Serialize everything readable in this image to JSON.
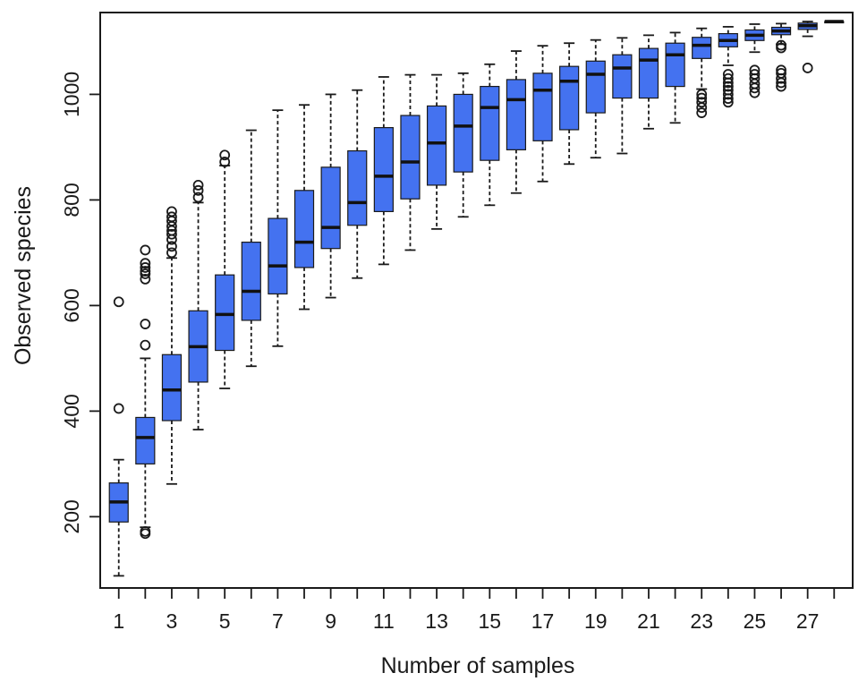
{
  "chart_data": {
    "type": "box",
    "xlabel": "Number of samples",
    "ylabel": "Observed species",
    "xlim": [
      0.3,
      28.7
    ],
    "ylim": [
      65,
      1155
    ],
    "x_ticks": [
      1,
      3,
      5,
      7,
      9,
      11,
      13,
      15,
      17,
      19,
      21,
      23,
      25,
      27
    ],
    "y_ticks": [
      200,
      400,
      600,
      800,
      1000
    ],
    "grid": false,
    "box_color": "#4472f0",
    "boxes": [
      {
        "x": 1,
        "whisker_low": 88,
        "q1": 190,
        "median": 228,
        "q3": 264,
        "whisker_high": 308,
        "outliers": [
          405,
          607
        ]
      },
      {
        "x": 2,
        "whisker_low": 180,
        "q1": 300,
        "median": 350,
        "q3": 388,
        "whisker_high": 500,
        "outliers": [
          168,
          172,
          525,
          565,
          650,
          660,
          665,
          672,
          680,
          705
        ]
      },
      {
        "x": 3,
        "whisker_low": 262,
        "q1": 382,
        "median": 440,
        "q3": 507,
        "whisker_high": 690,
        "outliers": [
          700,
          712,
          725,
          735,
          742,
          750,
          760,
          768,
          778
        ]
      },
      {
        "x": 4,
        "whisker_low": 365,
        "q1": 455,
        "median": 522,
        "q3": 590,
        "whisker_high": 795,
        "outliers": [
          805,
          818,
          828
        ]
      },
      {
        "x": 5,
        "whisker_low": 443,
        "q1": 515,
        "median": 583,
        "q3": 658,
        "whisker_high": 865,
        "outliers": [
          872,
          885
        ]
      },
      {
        "x": 6,
        "whisker_low": 485,
        "q1": 572,
        "median": 627,
        "q3": 720,
        "whisker_high": 932,
        "outliers": []
      },
      {
        "x": 7,
        "whisker_low": 523,
        "q1": 622,
        "median": 675,
        "q3": 765,
        "whisker_high": 970,
        "outliers": []
      },
      {
        "x": 8,
        "whisker_low": 593,
        "q1": 672,
        "median": 720,
        "q3": 818,
        "whisker_high": 980,
        "outliers": []
      },
      {
        "x": 9,
        "whisker_low": 615,
        "q1": 708,
        "median": 748,
        "q3": 862,
        "whisker_high": 1000,
        "outliers": []
      },
      {
        "x": 10,
        "whisker_low": 652,
        "q1": 752,
        "median": 795,
        "q3": 893,
        "whisker_high": 1008,
        "outliers": []
      },
      {
        "x": 11,
        "whisker_low": 678,
        "q1": 778,
        "median": 845,
        "q3": 937,
        "whisker_high": 1033,
        "outliers": []
      },
      {
        "x": 12,
        "whisker_low": 705,
        "q1": 802,
        "median": 872,
        "q3": 960,
        "whisker_high": 1037,
        "outliers": []
      },
      {
        "x": 13,
        "whisker_low": 745,
        "q1": 828,
        "median": 908,
        "q3": 978,
        "whisker_high": 1037,
        "outliers": []
      },
      {
        "x": 14,
        "whisker_low": 768,
        "q1": 853,
        "median": 940,
        "q3": 1000,
        "whisker_high": 1040,
        "outliers": []
      },
      {
        "x": 15,
        "whisker_low": 790,
        "q1": 875,
        "median": 975,
        "q3": 1015,
        "whisker_high": 1057,
        "outliers": []
      },
      {
        "x": 16,
        "whisker_low": 813,
        "q1": 895,
        "median": 990,
        "q3": 1028,
        "whisker_high": 1082,
        "outliers": []
      },
      {
        "x": 17,
        "whisker_low": 835,
        "q1": 912,
        "median": 1008,
        "q3": 1040,
        "whisker_high": 1092,
        "outliers": []
      },
      {
        "x": 18,
        "whisker_low": 868,
        "q1": 933,
        "median": 1025,
        "q3": 1053,
        "whisker_high": 1097,
        "outliers": []
      },
      {
        "x": 19,
        "whisker_low": 880,
        "q1": 965,
        "median": 1038,
        "q3": 1063,
        "whisker_high": 1103,
        "outliers": []
      },
      {
        "x": 20,
        "whisker_low": 888,
        "q1": 993,
        "median": 1050,
        "q3": 1075,
        "whisker_high": 1107,
        "outliers": []
      },
      {
        "x": 21,
        "whisker_low": 935,
        "q1": 993,
        "median": 1065,
        "q3": 1087,
        "whisker_high": 1112,
        "outliers": []
      },
      {
        "x": 22,
        "whisker_low": 946,
        "q1": 1015,
        "median": 1075,
        "q3": 1097,
        "whisker_high": 1117,
        "outliers": []
      },
      {
        "x": 23,
        "whisker_low": 1010,
        "q1": 1068,
        "median": 1093,
        "q3": 1108,
        "whisker_high": 1125,
        "outliers": [
          965,
          975,
          985,
          993,
          1000
        ]
      },
      {
        "x": 24,
        "whisker_low": 1055,
        "q1": 1090,
        "median": 1102,
        "q3": 1115,
        "whisker_high": 1128,
        "outliers": [
          985,
          992,
          1000,
          1008,
          1015,
          1022,
          1030,
          1038
        ]
      },
      {
        "x": 25,
        "whisker_low": 1080,
        "q1": 1102,
        "median": 1112,
        "q3": 1122,
        "whisker_high": 1133,
        "outliers": [
          1003,
          1012,
          1020,
          1030,
          1038,
          1046
        ]
      },
      {
        "x": 26,
        "whisker_low": 1095,
        "q1": 1113,
        "median": 1120,
        "q3": 1127,
        "whisker_high": 1134,
        "outliers": [
          1015,
          1022,
          1030,
          1040,
          1046,
          1088,
          1093
        ]
      },
      {
        "x": 27,
        "whisker_low": 1110,
        "q1": 1123,
        "median": 1130,
        "q3": 1135,
        "whisker_high": 1138,
        "outliers": [
          1050
        ]
      },
      {
        "x": 28,
        "whisker_low": 1138,
        "q1": 1138,
        "median": 1138,
        "q3": 1138,
        "whisker_high": 1138,
        "outliers": []
      }
    ]
  }
}
